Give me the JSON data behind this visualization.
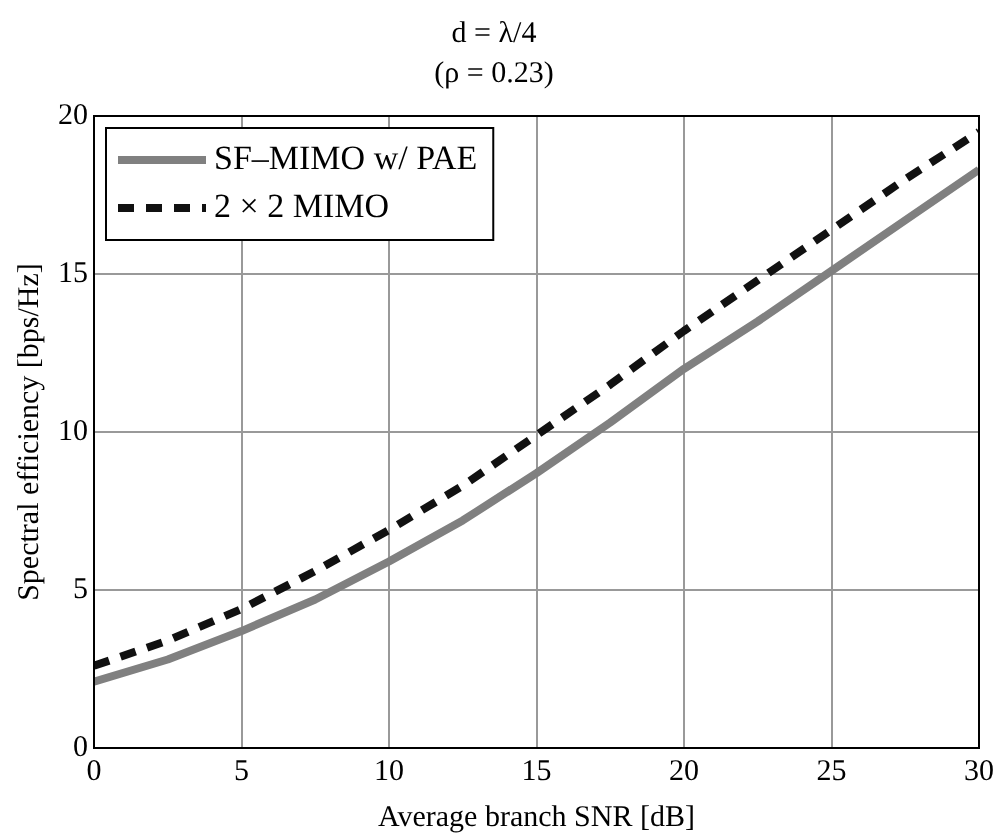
{
  "chart_data": {
    "type": "line",
    "title": "d = λ/4",
    "subtitle": "(ρ = 0.23)",
    "xlabel": "Average branch SNR [dB]",
    "ylabel": "Spectral efficiency [bps/Hz]",
    "x": [
      0,
      2.5,
      5,
      7.5,
      10,
      12.5,
      15,
      17.5,
      20,
      22.5,
      25,
      27.5,
      30
    ],
    "series": [
      {
        "name": "SF–MIMO w/ PAE",
        "color": "#808080",
        "line_style": "solid",
        "values": [
          2.1,
          2.8,
          3.7,
          4.7,
          5.9,
          7.2,
          8.7,
          10.3,
          12.0,
          13.5,
          15.1,
          16.7,
          18.3
        ]
      },
      {
        "name": "2 × 2 MIMO",
        "color": "#111111",
        "line_style": "dashed",
        "values": [
          2.6,
          3.4,
          4.4,
          5.6,
          6.9,
          8.3,
          9.9,
          11.5,
          13.2,
          14.8,
          16.4,
          18.0,
          19.5
        ]
      }
    ],
    "xlim": [
      0,
      30
    ],
    "xticks": [
      0,
      5,
      10,
      15,
      20,
      25,
      30
    ],
    "ylim": [
      0,
      20
    ],
    "yticks": [
      0,
      5,
      10,
      15,
      20
    ],
    "grid": true,
    "legend": "top left",
    "marker": "none"
  }
}
